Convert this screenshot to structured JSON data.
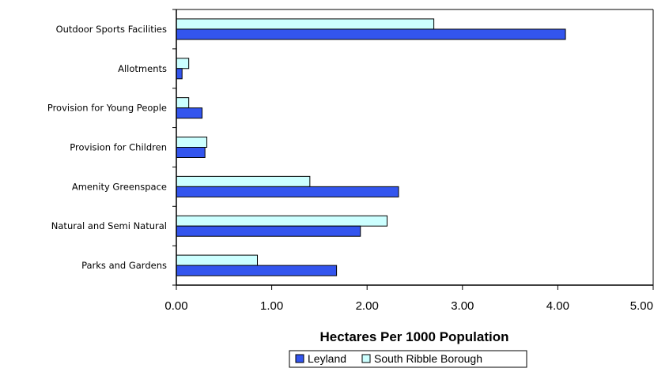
{
  "chart_data": {
    "type": "bar",
    "orientation": "horizontal",
    "categories": [
      "Outdoor Sports Facilities",
      "Allotments",
      "Provision for Young People",
      "Provision for Children",
      "Amenity Greenspace",
      "Natural and Semi Natural",
      "Parks and Gardens"
    ],
    "series": [
      {
        "name": "Leyland",
        "color": "#3355ee",
        "values": [
          4.08,
          0.06,
          0.27,
          0.3,
          2.33,
          1.93,
          1.68
        ]
      },
      {
        "name": "South Ribble Borough",
        "color": "#ccffff",
        "values": [
          2.7,
          0.13,
          0.13,
          0.32,
          1.4,
          2.21,
          0.85
        ]
      }
    ],
    "xlabel": "Hectares Per 1000 Population",
    "xlim": [
      0,
      5
    ],
    "xticks": [
      "0.00",
      "1.00",
      "2.00",
      "3.00",
      "4.00",
      "5.00"
    ],
    "grid": false,
    "legend_position": "bottom"
  }
}
